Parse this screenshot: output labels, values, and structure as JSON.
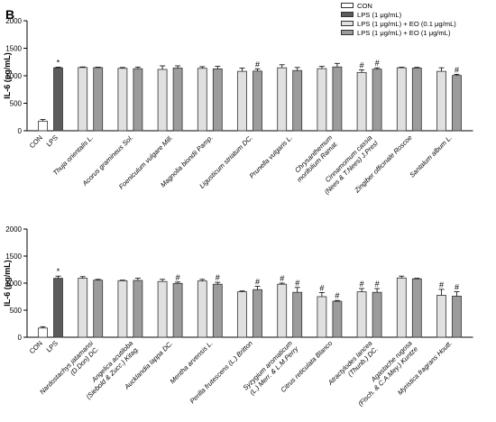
{
  "panel_label": "B",
  "legend": [
    {
      "label": "CON",
      "color": "#ffffff"
    },
    {
      "label": "LPS (1 μg/mL)",
      "color": "#5c5c5c"
    },
    {
      "label": "LPS (1 μg/mL) + EO (0.1 μg/mL)",
      "color": "#e0e0e0"
    },
    {
      "label": "LPS (1 μg/mL) + EO (1 μg/mL)",
      "color": "#9c9c9c"
    }
  ],
  "chart_data": [
    {
      "type": "bar",
      "ylabel": "IL-6 (pg/mL)",
      "ylim": [
        0,
        2000
      ],
      "yticks": [
        0,
        500,
        1000,
        1500,
        2000
      ],
      "controls": [
        {
          "label": "CON",
          "value": 175,
          "error": 30,
          "mark": ""
        },
        {
          "label": "LPS",
          "value": 1145,
          "error": 12,
          "mark": "*"
        }
      ],
      "groups": [
        {
          "label": [
            "Thuja orientalis L."
          ],
          "values": [
            1150,
            1148
          ],
          "errors": [
            10,
            8
          ],
          "marks": [
            "",
            ""
          ]
        },
        {
          "label": [
            "Acorus gramineus Sol."
          ],
          "values": [
            1135,
            1128
          ],
          "errors": [
            15,
            30
          ],
          "marks": [
            "",
            ""
          ]
        },
        {
          "label": [
            "Foeniculum vulgare Mill."
          ],
          "values": [
            1115,
            1140
          ],
          "errors": [
            65,
            40
          ],
          "marks": [
            "",
            ""
          ]
        },
        {
          "label": [
            "Magnolia biondii Pamp."
          ],
          "values": [
            1135,
            1125
          ],
          "errors": [
            30,
            45
          ],
          "marks": [
            "",
            ""
          ]
        },
        {
          "label": [
            "Ligusticum striatum DC."
          ],
          "values": [
            1080,
            1085
          ],
          "errors": [
            60,
            40
          ],
          "marks": [
            "",
            "#"
          ]
        },
        {
          "label": [
            "Prunella vulgaris L."
          ],
          "values": [
            1145,
            1095
          ],
          "errors": [
            55,
            55
          ],
          "marks": [
            "",
            ""
          ]
        },
        {
          "label": [
            "Chrysanthemum",
            "morifolium Ramat."
          ],
          "values": [
            1130,
            1160
          ],
          "errors": [
            40,
            65
          ],
          "marks": [
            "",
            ""
          ]
        },
        {
          "label": [
            "Cinnamomum cassia",
            "(Nees & T.Nees) J.Presl"
          ],
          "values": [
            1060,
            1120
          ],
          "errors": [
            45,
            25
          ],
          "marks": [
            "#",
            "#"
          ]
        },
        {
          "label": [
            "Zingiber officinale Roscoe"
          ],
          "values": [
            1145,
            1140
          ],
          "errors": [
            10,
            12
          ],
          "marks": [
            "",
            ""
          ]
        },
        {
          "label": [
            "Santalum album L."
          ],
          "values": [
            1080,
            1005
          ],
          "errors": [
            65,
            20
          ],
          "marks": [
            "",
            "#"
          ]
        }
      ]
    },
    {
      "type": "bar",
      "ylabel": "IL-6 (pg/mL)",
      "ylim": [
        0,
        2000
      ],
      "yticks": [
        0,
        500,
        1000,
        1500,
        2000
      ],
      "controls": [
        {
          "label": "CON",
          "value": 170,
          "error": 25,
          "mark": ""
        },
        {
          "label": "LPS",
          "value": 1090,
          "error": 40,
          "mark": "*"
        }
      ],
      "groups": [
        {
          "label": [
            "Nardostachys jatamansi",
            "(D.Don) DC."
          ],
          "values": [
            1090,
            1055
          ],
          "errors": [
            30,
            15
          ],
          "marks": [
            "",
            ""
          ]
        },
        {
          "label": [
            "Angelica acutiloba",
            "(Siebold & Zucc.) Kitag."
          ],
          "values": [
            1045,
            1050
          ],
          "errors": [
            10,
            40
          ],
          "marks": [
            "",
            ""
          ]
        },
        {
          "label": [
            "Aucklandia lappa DC."
          ],
          "values": [
            1030,
            995
          ],
          "errors": [
            40,
            25
          ],
          "marks": [
            "",
            "#"
          ]
        },
        {
          "label": [
            "Mentha arvensis L."
          ],
          "values": [
            1040,
            980
          ],
          "errors": [
            30,
            35
          ],
          "marks": [
            "",
            "#"
          ]
        },
        {
          "label": [
            "Perilla frutescens (L.) Britton"
          ],
          "values": [
            840,
            880
          ],
          "errors": [
            15,
            60
          ],
          "marks": [
            "",
            "#"
          ]
        },
        {
          "label": [
            "Syzygium aromaticum",
            "(L.) Merr. & L.M.Perry"
          ],
          "values": [
            980,
            830
          ],
          "errors": [
            20,
            90
          ],
          "marks": [
            "#",
            "#"
          ]
        },
        {
          "label": [
            "Citrus reticulata Blanco"
          ],
          "values": [
            750,
            665
          ],
          "errors": [
            75,
            15
          ],
          "marks": [
            "#",
            "#"
          ]
        },
        {
          "label": [
            "Atractylodes lancea",
            "(Thunb.) DC."
          ],
          "values": [
            840,
            830
          ],
          "errors": [
            60,
            70
          ],
          "marks": [
            "#",
            "#"
          ]
        },
        {
          "label": [
            "Agastache rugosa",
            "(Fisch. & C.A.Mey.) Kuntze"
          ],
          "values": [
            1095,
            1080
          ],
          "errors": [
            35,
            10
          ],
          "marks": [
            "",
            ""
          ]
        },
        {
          "label": [
            "Myristica fragrans Houtt."
          ],
          "values": [
            775,
            760
          ],
          "errors": [
            110,
            80
          ],
          "marks": [
            "#",
            "#"
          ]
        }
      ]
    }
  ]
}
